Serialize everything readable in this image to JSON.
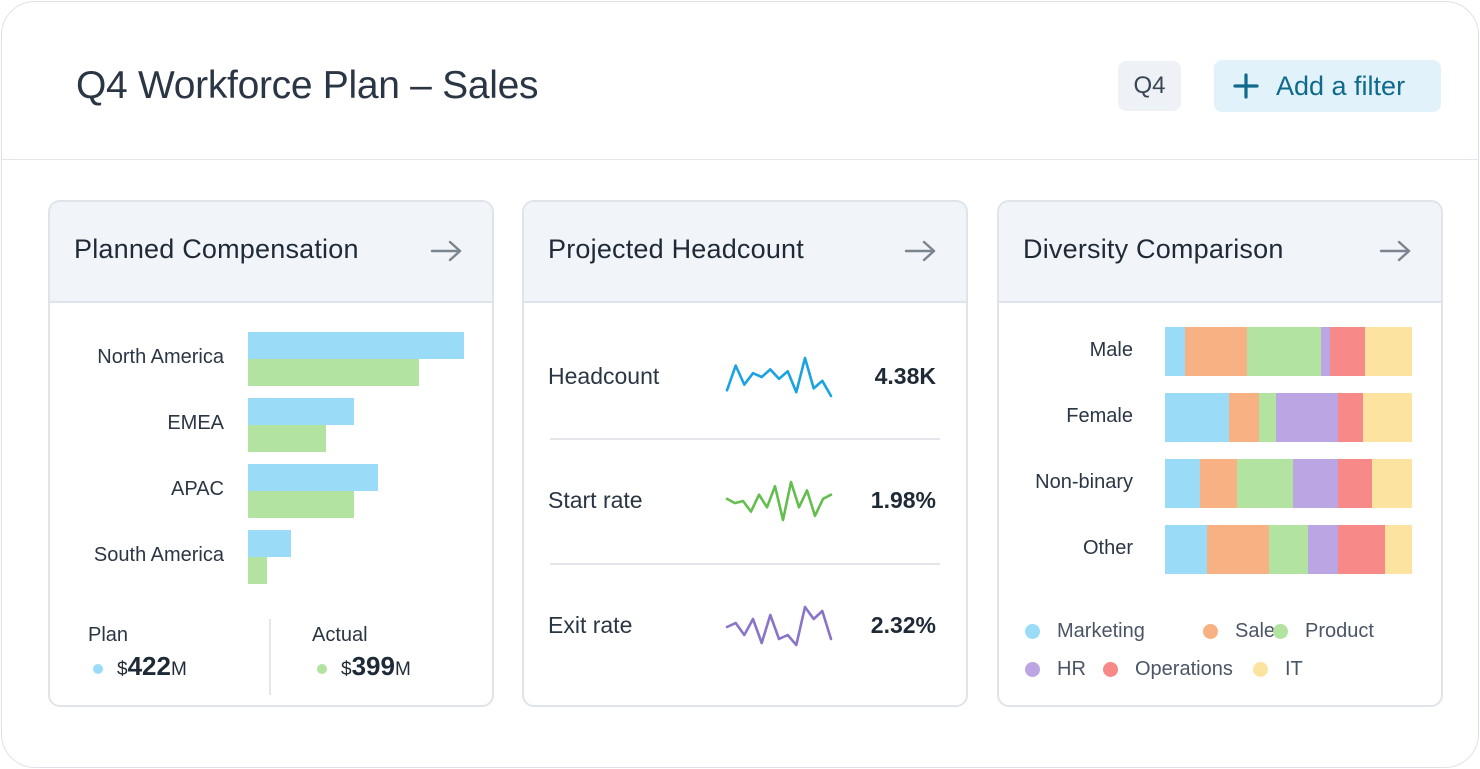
{
  "header": {
    "title": "Q4 Workforce Plan – Sales",
    "period_chip": "Q4",
    "filter_button": "Add a filter"
  },
  "colors": {
    "plan": "#9adcf7",
    "actual": "#b3e3a0",
    "headcount_line": "#1aa3e0",
    "start_line": "#63be4f",
    "exit_line": "#8a74c7",
    "Marketing": "#9adcf7",
    "Sales": "#f7b183",
    "Product": "#b3e3a0",
    "HR": "#bba6e3",
    "Operations": "#f78a88",
    "IT": "#fde3a0"
  },
  "compensation": {
    "title": "Planned Compensation",
    "regions": [
      {
        "name": "North America",
        "plan": 100,
        "actual": 79
      },
      {
        "name": "EMEA",
        "plan": 49,
        "actual": 36
      },
      {
        "name": "APAC",
        "plan": 60,
        "actual": 49
      },
      {
        "name": "South America",
        "plan": 20,
        "actual": 9
      }
    ],
    "legend": {
      "plan_label": "Plan",
      "plan_prefix": "$",
      "plan_value": "422",
      "plan_unit": "M",
      "actual_label": "Actual",
      "actual_prefix": "$",
      "actual_value": "399",
      "actual_unit": "M"
    }
  },
  "headcount": {
    "title": "Projected Headcount",
    "metrics": [
      {
        "label": "Headcount",
        "value": "4.38K",
        "trend": [
          5,
          18,
          8,
          14,
          12,
          16,
          11,
          15,
          4,
          22,
          6,
          10,
          2
        ]
      },
      {
        "label": "Start rate",
        "value": "1.98%",
        "trend": [
          12,
          10,
          11,
          6,
          14,
          8,
          18,
          2,
          20,
          8,
          16,
          4,
          12,
          14
        ]
      },
      {
        "label": "Exit rate",
        "value": "2.32%",
        "trend": [
          12,
          14,
          8,
          16,
          4,
          18,
          6,
          8,
          3,
          22,
          16,
          20,
          6
        ]
      }
    ]
  },
  "diversity": {
    "title": "Diversity Comparison",
    "categories": [
      "Marketing",
      "Sales",
      "Product",
      "HR",
      "Operations",
      "IT"
    ],
    "groups": [
      {
        "name": "Male",
        "shares": [
          8,
          25,
          30,
          4,
          14,
          19
        ]
      },
      {
        "name": "Female",
        "shares": [
          26,
          12,
          7,
          25,
          10,
          20
        ]
      },
      {
        "name": "Non-binary",
        "shares": [
          14,
          15,
          23,
          18,
          14,
          16
        ]
      },
      {
        "name": "Other",
        "shares": [
          17,
          25,
          16,
          12,
          19,
          11
        ]
      }
    ]
  }
}
